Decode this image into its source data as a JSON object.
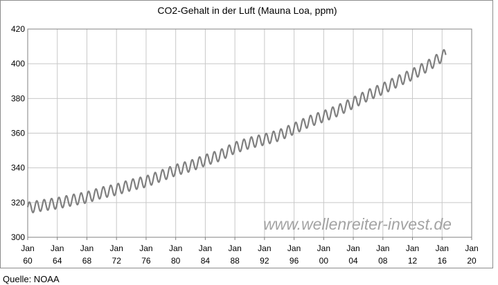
{
  "chart_data": {
    "type": "line",
    "title": "CO2-Gehalt in der Luft (Mauna Loa, ppm)",
    "xlabel": "",
    "ylabel": "",
    "xlim": [
      1960,
      2020
    ],
    "ylim": [
      300,
      420
    ],
    "grid": true,
    "legend": "none",
    "line_color": "#808080",
    "y_ticks": [
      "300",
      "320",
      "340",
      "360",
      "380",
      "400",
      "420"
    ],
    "x_ticks": [
      {
        "line1": "Jan",
        "line2": "60"
      },
      {
        "line1": "Jan",
        "line2": "64"
      },
      {
        "line1": "Jan",
        "line2": "68"
      },
      {
        "line1": "Jan",
        "line2": "72"
      },
      {
        "line1": "Jan",
        "line2": "76"
      },
      {
        "line1": "Jan",
        "line2": "80"
      },
      {
        "line1": "Jan",
        "line2": "84"
      },
      {
        "line1": "Jan",
        "line2": "88"
      },
      {
        "line1": "Jan",
        "line2": "92"
      },
      {
        "line1": "Jan",
        "line2": "96"
      },
      {
        "line1": "Jan",
        "line2": "00"
      },
      {
        "line1": "Jan",
        "line2": "04"
      },
      {
        "line1": "Jan",
        "line2": "08"
      },
      {
        "line1": "Jan",
        "line2": "12"
      },
      {
        "line1": "Jan",
        "line2": "16"
      },
      {
        "line1": "Jan",
        "line2": "20"
      }
    ],
    "series": [
      {
        "x": [
          1960,
          1962,
          1964,
          1966,
          1968,
          1970,
          1972,
          1974,
          1976,
          1978,
          1980,
          1982,
          1984,
          1986,
          1988,
          1990,
          1992,
          1994,
          1996,
          1998,
          2000,
          2002,
          2004,
          2006,
          2008,
          2010,
          2012,
          2014,
          2016
        ],
        "y": [
          316.9,
          318.4,
          319.6,
          321.4,
          323.0,
          325.7,
          327.5,
          330.2,
          332.1,
          335.4,
          338.7,
          341.1,
          344.4,
          347.2,
          351.6,
          354.4,
          356.4,
          358.8,
          362.6,
          366.7,
          369.7,
          373.2,
          377.5,
          381.9,
          385.6,
          389.9,
          393.9,
          398.6,
          404.2
        ],
        "seasonal_amplitude_ppm": 3.2,
        "end_year": 2016.5
      }
    ],
    "watermark": "www.wellenreiter-invest.de"
  },
  "footer": {
    "source": "Quelle: NOAA"
  }
}
